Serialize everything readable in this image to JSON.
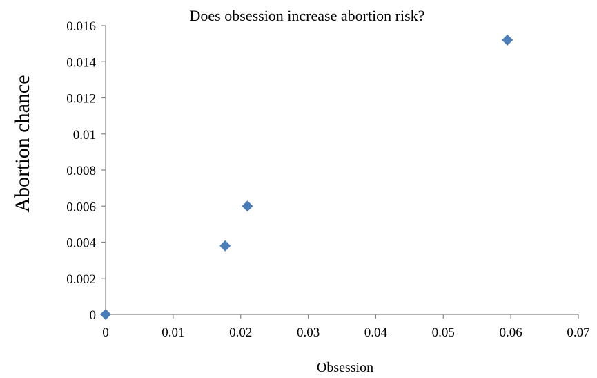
{
  "chart_data": {
    "type": "scatter",
    "title": "Does obsession increase abortion risk?",
    "xlabel": "Obsession",
    "ylabel": "Abortion chance",
    "xlim": [
      0,
      0.07
    ],
    "ylim": [
      0,
      0.016
    ],
    "x_ticks": [
      "0",
      "0.01",
      "0.02",
      "0.03",
      "0.04",
      "0.05",
      "0.06",
      "0.07"
    ],
    "y_ticks": [
      "0",
      "0.002",
      "0.004",
      "0.006",
      "0.008",
      "0.01",
      "0.012",
      "0.014",
      "0.016"
    ],
    "grid": false,
    "marker": "diamond",
    "color": "#4a7ebb",
    "points": [
      {
        "x": 0,
        "y": 0
      },
      {
        "x": 0.0177,
        "y": 0.0038
      },
      {
        "x": 0.021,
        "y": 0.006
      },
      {
        "x": 0.0595,
        "y": 0.0152
      }
    ]
  }
}
